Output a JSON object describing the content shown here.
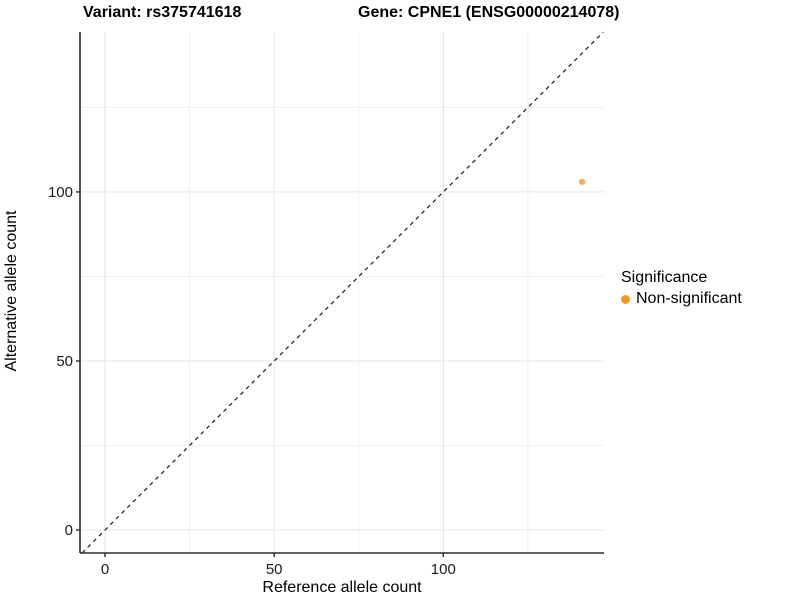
{
  "titles": {
    "left": "Variant: rs375741618",
    "right": "Gene: CPNE1 (ENSG00000214078)"
  },
  "chart_data": {
    "type": "scatter",
    "title": "Variant: rs375741618 | Gene: CPNE1 (ENSG00000214078)",
    "xlabel": "Reference allele count",
    "ylabel": "Alternative allele count",
    "xlim": [
      -7.4,
      147.5
    ],
    "ylim": [
      -6.8,
      147.3
    ],
    "x_ticks": [
      0,
      50,
      100
    ],
    "y_ticks": [
      0,
      50,
      100
    ],
    "x_minor_ticks": [
      25,
      75,
      125
    ],
    "y_minor_ticks": [
      25,
      75,
      125
    ],
    "grid": true,
    "identity_line": {
      "type": "dashed",
      "equation": "y = x"
    },
    "series": [
      {
        "name": "Non-significant",
        "points": [
          {
            "x": 141,
            "y": 103
          }
        ],
        "color": "#F9A03F"
      }
    ],
    "legend": {
      "title": "Significance",
      "position": "right",
      "entries": [
        {
          "label": "Non-significant",
          "color": "#F8981D"
        }
      ]
    },
    "colors": {
      "point": "#F9A03F",
      "legend_key": "#F8981D",
      "grid_major": "#E5E5E5",
      "grid_minor": "#F0F0F0",
      "axis_line": "#2B2B2B",
      "tick_text": "#1A1A1A",
      "identity_line": "#1A1A1A",
      "background": "#FFFFFF"
    }
  }
}
